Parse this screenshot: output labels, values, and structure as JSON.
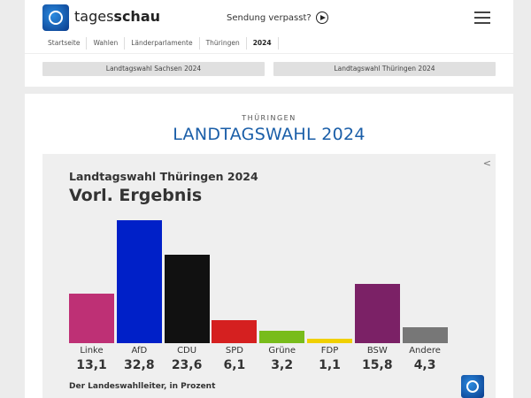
{
  "header": {
    "brand_light": "tages",
    "brand_bold": "schau",
    "missed": "Sendung verpasst?"
  },
  "breadcrumb": [
    "Startseite",
    "Wahlen",
    "Länderparlamente",
    "Thüringen",
    "2024"
  ],
  "links": [
    "Landtagswahl Sachsen 2024",
    "Landtagswahl Thüringen 2024"
  ],
  "main": {
    "kicker": "THÜRINGEN",
    "title": "LANDTAGSWAHL 2024"
  },
  "chart_data": {
    "type": "bar",
    "title": "Landtagswahl Thüringen 2024",
    "subtitle": "Vorl. Ergebnis",
    "source": "Der Landeswahlleiter, in Prozent",
    "categories": [
      "Linke",
      "AfD",
      "CDU",
      "SPD",
      "Grüne",
      "FDP",
      "BSW",
      "Andere"
    ],
    "labels": [
      "13,1",
      "32,8",
      "23,6",
      "6,1",
      "3,2",
      "1,1",
      "15,8",
      "4,3"
    ],
    "values": [
      13.1,
      32.8,
      23.6,
      6.1,
      3.2,
      1.1,
      15.8,
      4.3
    ],
    "colors": [
      "#be3075",
      "#0020c8",
      "#111111",
      "#d52020",
      "#78bc1b",
      "#f0d000",
      "#7b2166",
      "#777777"
    ]
  }
}
